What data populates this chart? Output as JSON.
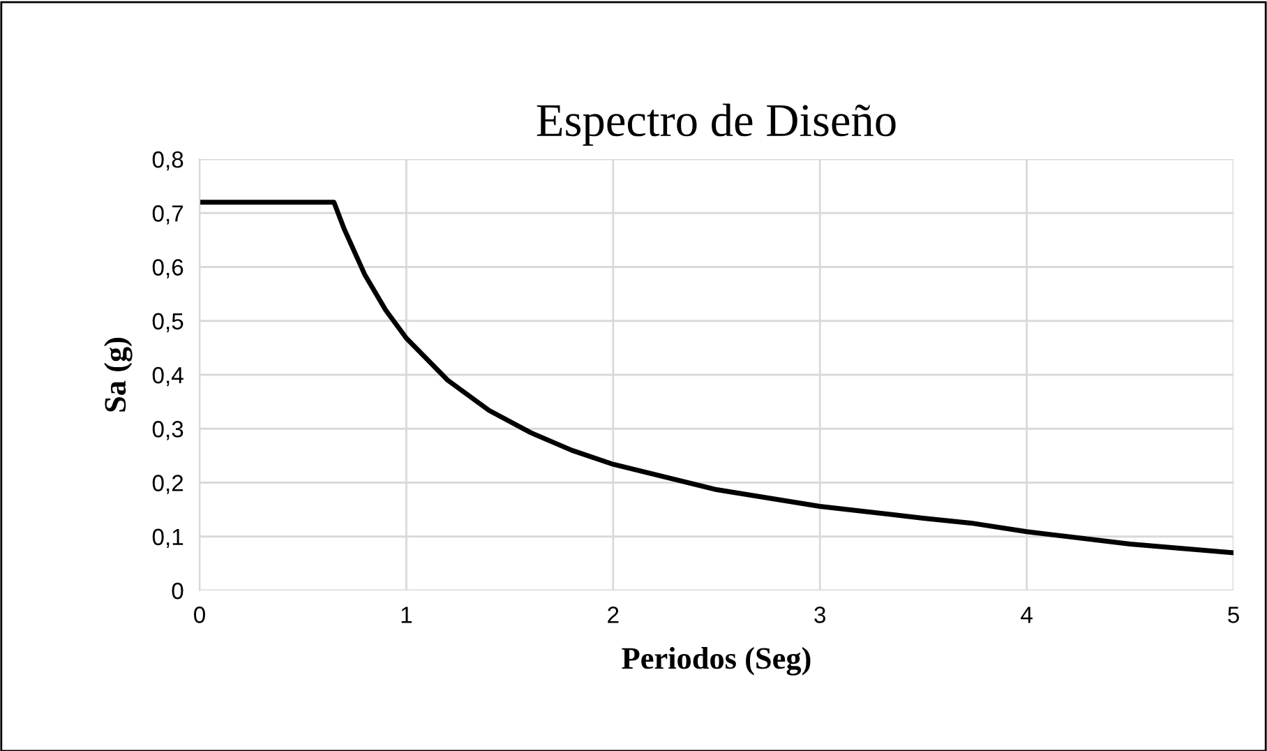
{
  "chart_data": {
    "type": "line",
    "title": "Espectro de Diseño",
    "xlabel": "Periodos (Seg)",
    "ylabel": "Sa (g)",
    "x": [
      0,
      0.65,
      0.7,
      0.8,
      0.9,
      1.0,
      1.2,
      1.4,
      1.6,
      1.8,
      2.0,
      2.5,
      3.0,
      3.5,
      3.73,
      4.0,
      4.5,
      5.0
    ],
    "series": [
      {
        "color": "#000000",
        "values": [
          0.72,
          0.72,
          0.67,
          0.585,
          0.52,
          0.468,
          0.39,
          0.334,
          0.293,
          0.26,
          0.234,
          0.187,
          0.156,
          0.134,
          0.125,
          0.109,
          0.086,
          0.07
        ]
      }
    ],
    "xlim": [
      0,
      5
    ],
    "xticks": [
      0,
      1,
      2,
      3,
      4,
      5
    ],
    "ylim": [
      0,
      0.8
    ],
    "yticks": [
      {
        "value": 0,
        "label": "0"
      },
      {
        "value": 0.1,
        "label": "0,1"
      },
      {
        "value": 0.2,
        "label": "0,2"
      },
      {
        "value": 0.3,
        "label": "0,3"
      },
      {
        "value": 0.4,
        "label": "0,4"
      },
      {
        "value": 0.5,
        "label": "0,5"
      },
      {
        "value": 0.6,
        "label": "0,6"
      },
      {
        "value": 0.7,
        "label": "0,7"
      },
      {
        "value": 0.8,
        "label": "0,8"
      }
    ],
    "grid": true,
    "marker": "none",
    "line_style": "solid",
    "legend": false
  }
}
